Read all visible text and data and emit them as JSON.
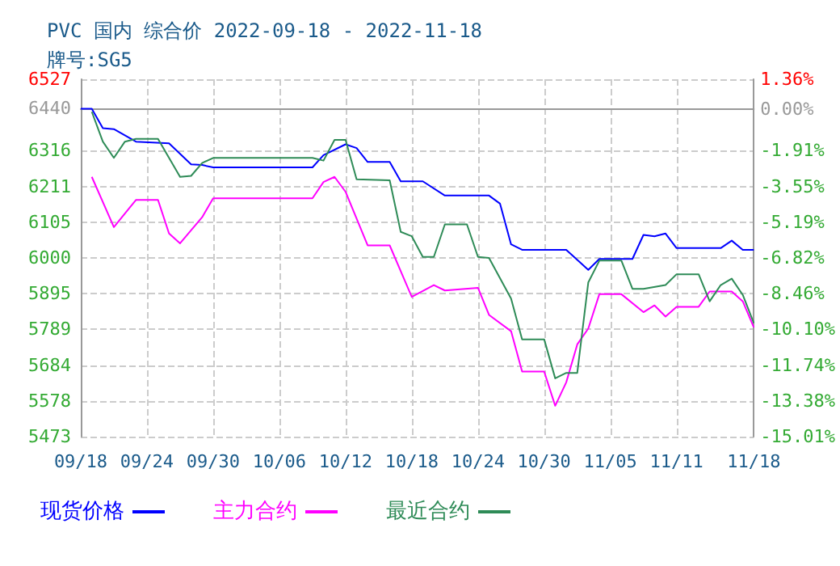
{
  "chart_data": {
    "type": "line",
    "title": "PVC 国内 综合价 2022-09-18 - 2022-11-18",
    "subtitle": "牌号:SG5",
    "xlim": [
      "2022-09-18",
      "2022-11-18"
    ],
    "xticks": [
      {
        "value": "2022-09-18",
        "label": "09/18"
      },
      {
        "value": "2022-09-24",
        "label": "09/24"
      },
      {
        "value": "2022-09-30",
        "label": "09/30"
      },
      {
        "value": "2022-10-06",
        "label": "10/06"
      },
      {
        "value": "2022-10-12",
        "label": "10/12"
      },
      {
        "value": "2022-10-18",
        "label": "10/18"
      },
      {
        "value": "2022-10-24",
        "label": "10/24"
      },
      {
        "value": "2022-10-30",
        "label": "10/30"
      },
      {
        "value": "2022-11-05",
        "label": "11/05"
      },
      {
        "value": "2022-11-11",
        "label": "11/11"
      },
      {
        "value": "2022-11-18",
        "label": "11/18"
      }
    ],
    "ylim": [
      5473,
      6527
    ],
    "yticks": [
      5473,
      5578,
      5684,
      5789,
      5895,
      6000,
      6105,
      6211,
      6316,
      6440,
      6527
    ],
    "y2lim": [
      -15.01,
      1.36
    ],
    "y2ticks": [
      {
        "value": -15.01,
        "label": "-15.01%"
      },
      {
        "value": -13.38,
        "label": "-13.38%"
      },
      {
        "value": -11.74,
        "label": "-11.74%"
      },
      {
        "value": -10.1,
        "label": "-10.10%"
      },
      {
        "value": -8.46,
        "label": "-8.46%"
      },
      {
        "value": -6.82,
        "label": "-6.82%"
      },
      {
        "value": -5.19,
        "label": "-5.19%"
      },
      {
        "value": -3.55,
        "label": "-3.55%"
      },
      {
        "value": -1.91,
        "label": "-1.91%"
      },
      {
        "value": 0,
        "label": "0.00%"
      },
      {
        "value": 1.36,
        "label": "1.36%"
      }
    ],
    "grid": true,
    "legend": "bottom",
    "marker": "none",
    "line_style": "solid",
    "series": [
      {
        "name": "现货价格",
        "color": "#0000ff",
        "x": [
          "2022-09-18",
          "2022-09-19",
          "2022-09-20",
          "2022-09-21",
          "2022-09-23",
          "2022-09-26",
          "2022-09-28",
          "2022-09-29",
          "2022-09-30",
          "2022-10-09",
          "2022-10-10",
          "2022-10-12",
          "2022-10-13",
          "2022-10-14",
          "2022-10-16",
          "2022-10-17",
          "2022-10-19",
          "2022-10-21",
          "2022-10-25",
          "2022-10-26",
          "2022-10-27",
          "2022-10-28",
          "2022-11-01",
          "2022-11-03",
          "2022-11-04",
          "2022-11-07",
          "2022-11-08",
          "2022-11-09",
          "2022-11-10",
          "2022-11-11",
          "2022-11-15",
          "2022-11-16",
          "2022-11-17",
          "2022-11-18"
        ],
        "values": [
          6440,
          6440,
          6383,
          6380,
          6343,
          6338,
          6276,
          6274,
          6267,
          6267,
          6303,
          6335,
          6324,
          6283,
          6283,
          6226,
          6226,
          6184,
          6184,
          6160,
          6040,
          6024,
          6024,
          5965,
          5997,
          5997,
          6068,
          6064,
          6072,
          6029,
          6029,
          6051,
          6024,
          6024
        ]
      },
      {
        "name": "主力合约",
        "color": "#ff00ff",
        "x": [
          "2022-09-19",
          "2022-09-21",
          "2022-09-23",
          "2022-09-25",
          "2022-09-26",
          "2022-09-27",
          "2022-09-29",
          "2022-09-30",
          "2022-10-09",
          "2022-10-10",
          "2022-10-11",
          "2022-10-12",
          "2022-10-14",
          "2022-10-16",
          "2022-10-18",
          "2022-10-20",
          "2022-10-21",
          "2022-10-24",
          "2022-10-25",
          "2022-10-27",
          "2022-10-28",
          "2022-10-30",
          "2022-10-31",
          "2022-11-01",
          "2022-11-02",
          "2022-11-03",
          "2022-11-04",
          "2022-11-06",
          "2022-11-08",
          "2022-11-09",
          "2022-11-10",
          "2022-11-11",
          "2022-11-13",
          "2022-11-14",
          "2022-11-16",
          "2022-11-17",
          "2022-11-18"
        ],
        "values": [
          6239,
          6091,
          6171,
          6171,
          6072,
          6043,
          6120,
          6176,
          6176,
          6224,
          6239,
          6195,
          6037,
          6037,
          5885,
          5920,
          5904,
          5912,
          5832,
          5784,
          5665,
          5665,
          5564,
          5633,
          5745,
          5792,
          5893,
          5893,
          5840,
          5860,
          5827,
          5856,
          5856,
          5901,
          5901,
          5872,
          5795
        ]
      },
      {
        "name": "最近合约",
        "color": "#2e8b57",
        "x": [
          "2022-09-19",
          "2022-09-20",
          "2022-09-21",
          "2022-09-22",
          "2022-09-23",
          "2022-09-25",
          "2022-09-26",
          "2022-09-27",
          "2022-09-28",
          "2022-09-29",
          "2022-09-30",
          "2022-10-09",
          "2022-10-10",
          "2022-10-11",
          "2022-10-12",
          "2022-10-13",
          "2022-10-16",
          "2022-10-17",
          "2022-10-18",
          "2022-10-19",
          "2022-10-20",
          "2022-10-21",
          "2022-10-23",
          "2022-10-24",
          "2022-10-25",
          "2022-10-27",
          "2022-10-28",
          "2022-10-30",
          "2022-10-31",
          "2022-11-01",
          "2022-11-02",
          "2022-11-03",
          "2022-11-04",
          "2022-11-06",
          "2022-11-07",
          "2022-11-08",
          "2022-11-10",
          "2022-11-11",
          "2022-11-13",
          "2022-11-14",
          "2022-11-15",
          "2022-11-16",
          "2022-11-17",
          "2022-11-18"
        ],
        "values": [
          6431,
          6343,
          6295,
          6343,
          6351,
          6351,
          6295,
          6239,
          6242,
          6280,
          6295,
          6295,
          6287,
          6348,
          6348,
          6232,
          6229,
          6077,
          6064,
          6003,
          6003,
          6099,
          6099,
          6003,
          6000,
          5880,
          5760,
          5760,
          5645,
          5661,
          5661,
          5928,
          5992,
          5992,
          5909,
          5909,
          5920,
          5952,
          5952,
          5872,
          5920,
          5939,
          5891,
          5808
        ]
      }
    ]
  }
}
